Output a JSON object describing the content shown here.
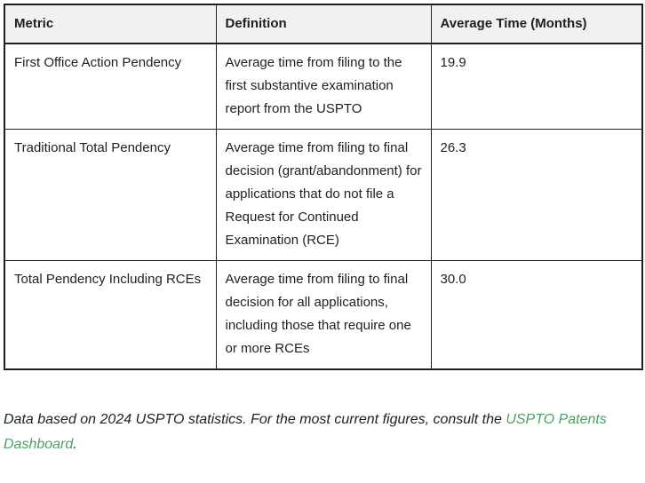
{
  "table": {
    "headers": {
      "metric": "Metric",
      "definition": "Definition",
      "avg_time": "Average Time (Months)"
    },
    "rows": [
      {
        "metric": "First Office Action Pendency",
        "definition": "Average time from filing to the first substantive examination report from the USPTO",
        "avg_time": "19.9"
      },
      {
        "metric": "Traditional Total Pendency",
        "definition": "Average time from filing to final decision (grant/abandonment) for applications that do not file a Request for Continued Examination (RCE)",
        "avg_time": "26.3"
      },
      {
        "metric": "Total Pendency Including RCEs",
        "definition": "Average time from filing to final decision for all applications, including those that require one or more RCEs",
        "avg_time": "30.0"
      }
    ]
  },
  "footer": {
    "text_before_link": "Data based on 2024 USPTO statistics. For the most current figures, consult the ",
    "link_text": "USPTO Patents Dashboard",
    "text_after_link": "."
  },
  "colors": {
    "link_green": "#4f9e64",
    "header_bg": "#f1f1f1",
    "border": "#1f1f1f",
    "text": "#1f1f1f"
  }
}
